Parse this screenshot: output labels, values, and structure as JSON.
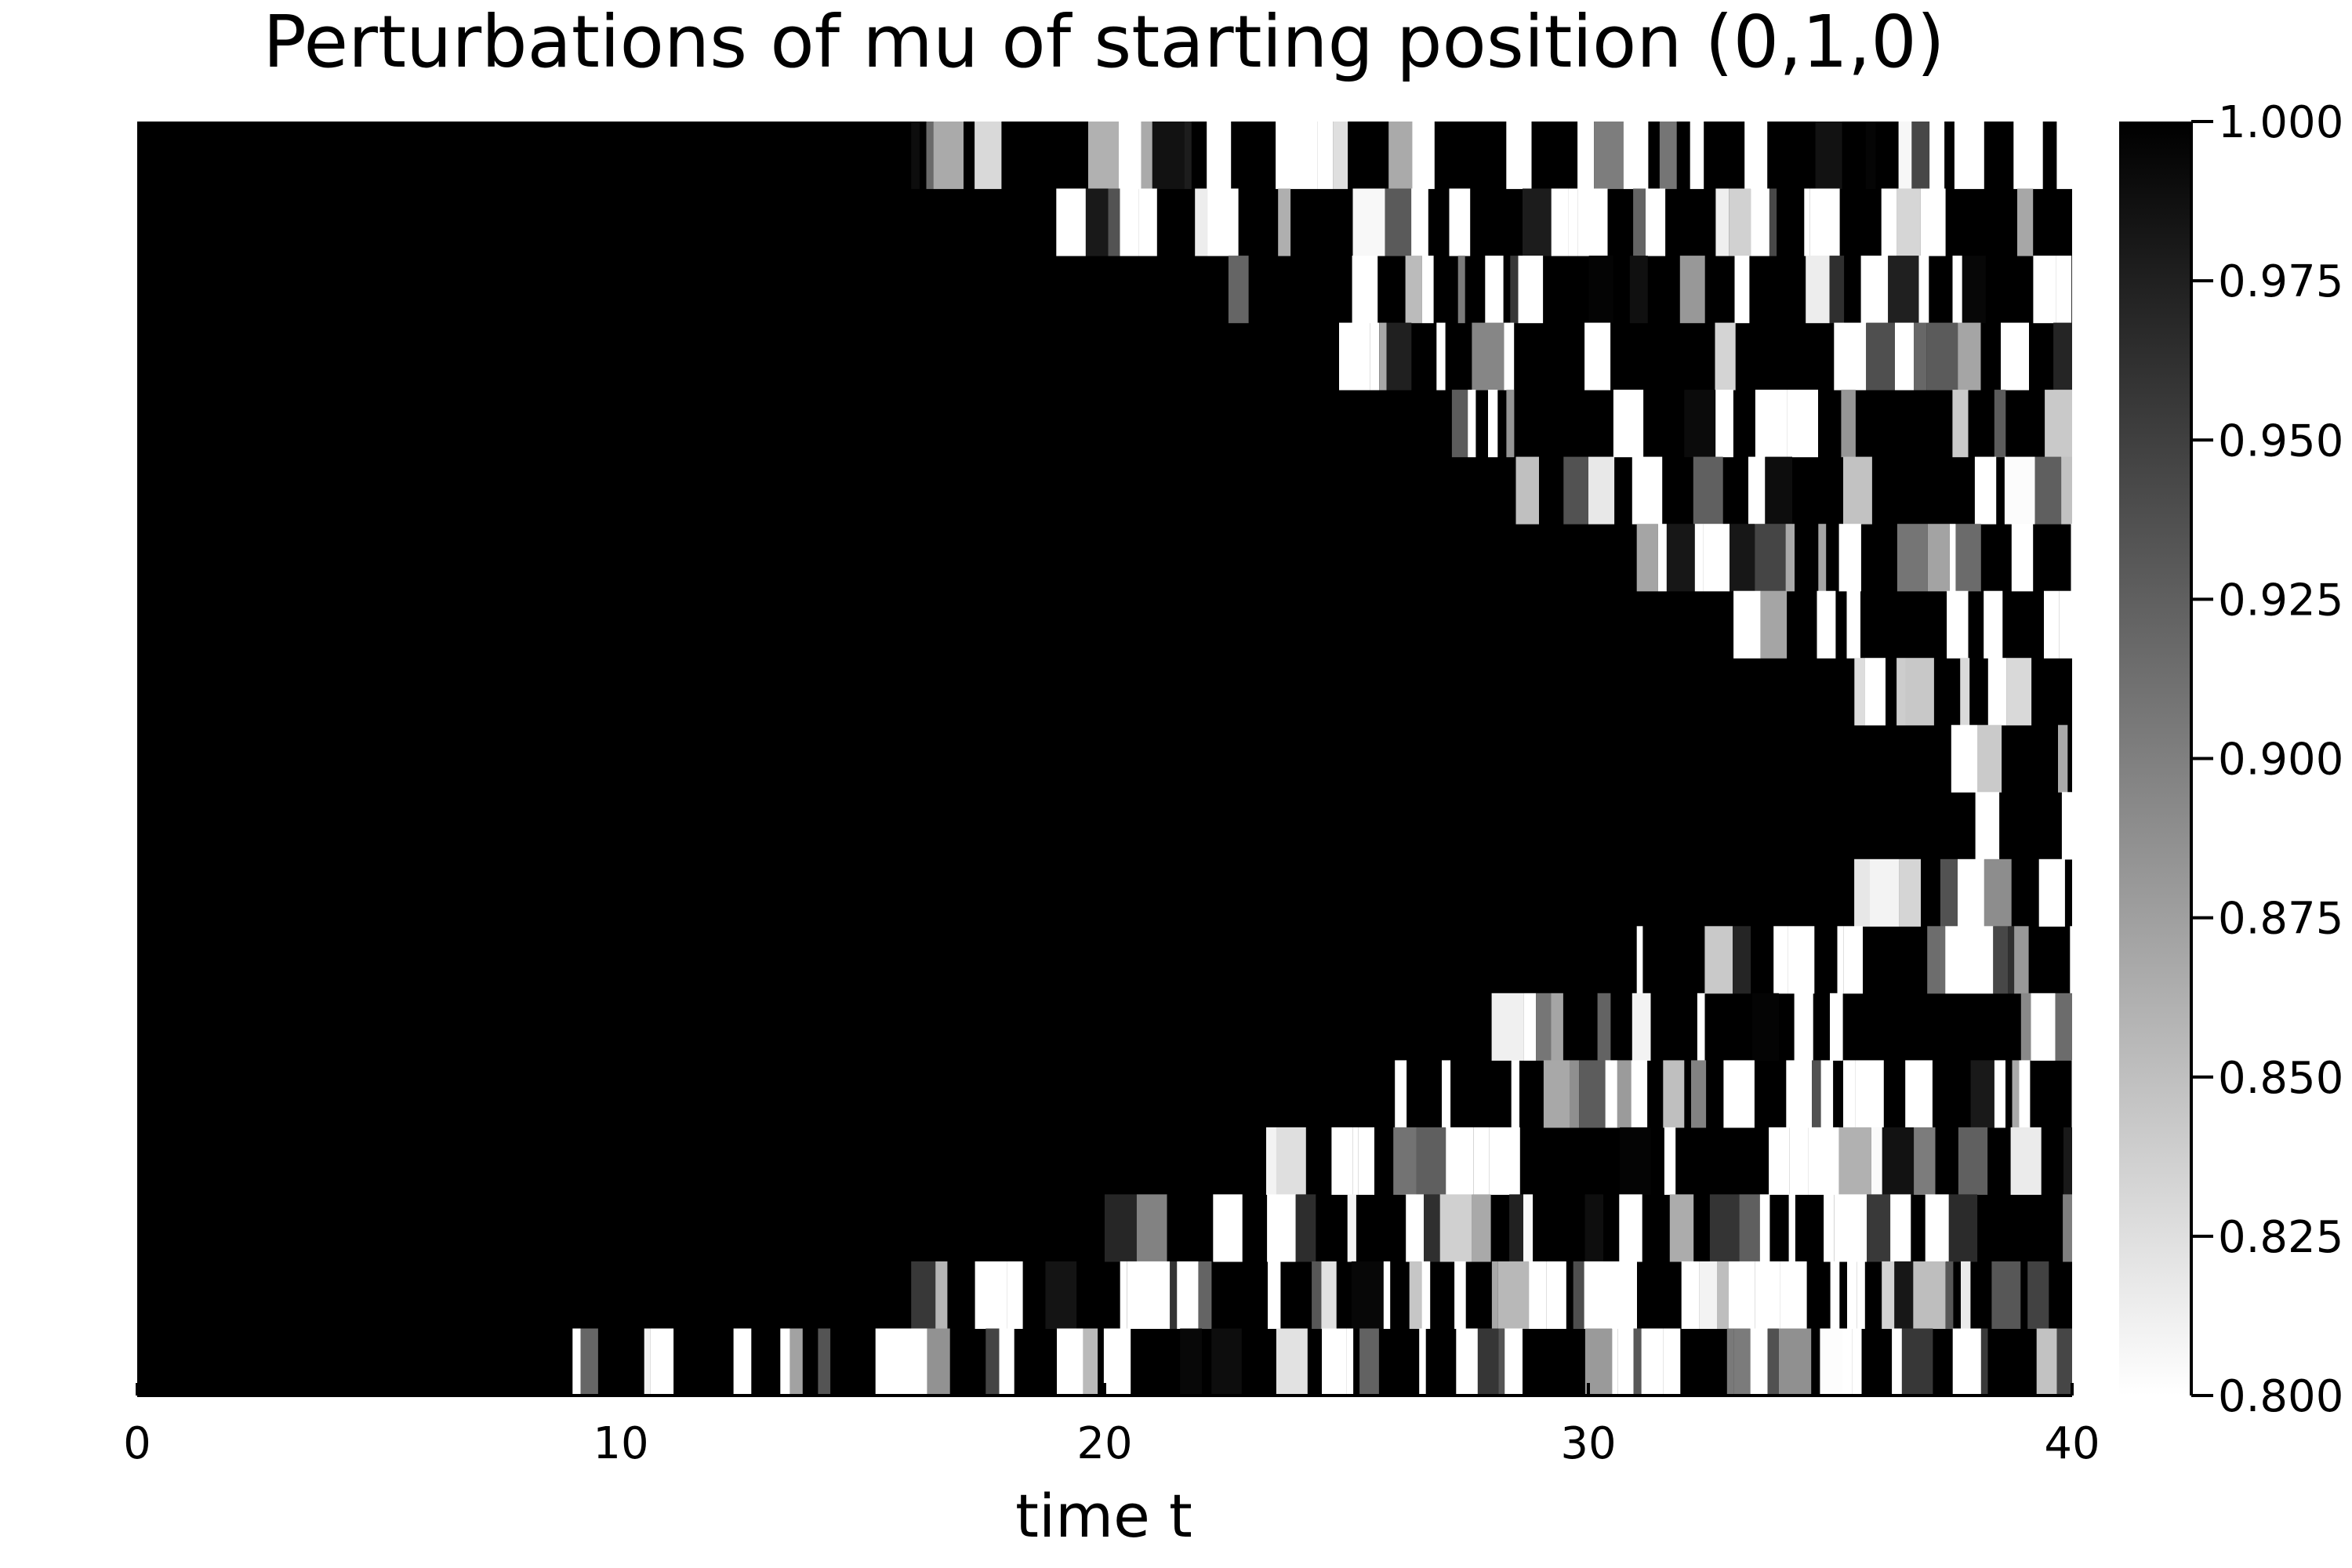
{
  "chart_data": {
    "type": "heatmap",
    "title": "Perturbations of mu of starting position (0,1,0)",
    "xlabel": "time t",
    "ylabel": "",
    "xlim": [
      0,
      40
    ],
    "x_ticks": [
      "0",
      "10",
      "20",
      "30",
      "40"
    ],
    "x_tick_values": [
      0,
      10,
      20,
      30,
      40
    ],
    "colorbar": {
      "min": 0.8,
      "max": 1.0,
      "ticks": [
        "1.000",
        "0.975",
        "0.950",
        "0.925",
        "0.900",
        "0.875",
        "0.850",
        "0.825",
        "0.800"
      ],
      "tick_values": [
        1.0,
        0.975,
        0.95,
        0.925,
        0.9,
        0.875,
        0.85,
        0.825,
        0.8
      ],
      "low_color": "#ffffff",
      "high_color": "#000000"
    },
    "rows": [
      {
        "chaos_start": 16.0
      },
      {
        "chaos_start": 19.0
      },
      {
        "chaos_start": 22.0
      },
      {
        "chaos_start": 24.5
      },
      {
        "chaos_start": 26.0
      },
      {
        "chaos_start": 28.5
      },
      {
        "chaos_start": 31.0
      },
      {
        "chaos_start": 33.0
      },
      {
        "chaos_start": 35.5
      },
      {
        "chaos_start": 37.5
      },
      {
        "chaos_start": 38.0
      },
      {
        "chaos_start": 35.0
      },
      {
        "chaos_start": 31.0
      },
      {
        "chaos_start": 28.0
      },
      {
        "chaos_start": 26.0
      },
      {
        "chaos_start": 22.5
      },
      {
        "chaos_start": 20.0
      },
      {
        "chaos_start": 16.0
      },
      {
        "chaos_start": 9.0
      }
    ]
  }
}
